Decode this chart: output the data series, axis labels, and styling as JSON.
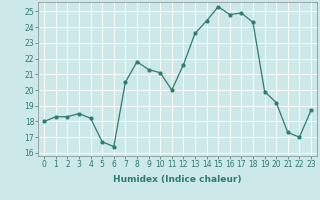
{
  "x": [
    0,
    1,
    2,
    3,
    4,
    5,
    6,
    7,
    8,
    9,
    10,
    11,
    12,
    13,
    14,
    15,
    16,
    17,
    18,
    19,
    20,
    21,
    22,
    23
  ],
  "y": [
    18.0,
    18.3,
    18.3,
    18.5,
    18.2,
    16.7,
    16.4,
    20.5,
    21.8,
    21.3,
    21.1,
    20.0,
    21.6,
    23.6,
    24.4,
    25.3,
    24.8,
    24.9,
    24.3,
    19.9,
    19.2,
    17.3,
    17.0,
    18.7
  ],
  "xlabel": "Humidex (Indice chaleur)",
  "line_color": "#2d7d6e",
  "bg_color": "#cce8e8",
  "grid_color": "#ffffff",
  "ylim": [
    15.8,
    25.6
  ],
  "xlim": [
    -0.5,
    23.5
  ],
  "yticks": [
    16,
    17,
    18,
    19,
    20,
    21,
    22,
    23,
    24,
    25
  ],
  "xticks": [
    0,
    1,
    2,
    3,
    4,
    5,
    6,
    7,
    8,
    9,
    10,
    11,
    12,
    13,
    14,
    15,
    16,
    17,
    18,
    19,
    20,
    21,
    22,
    23
  ],
  "tick_fontsize": 5.5,
  "xlabel_fontsize": 6.5,
  "ylabel_fontsize": 6
}
